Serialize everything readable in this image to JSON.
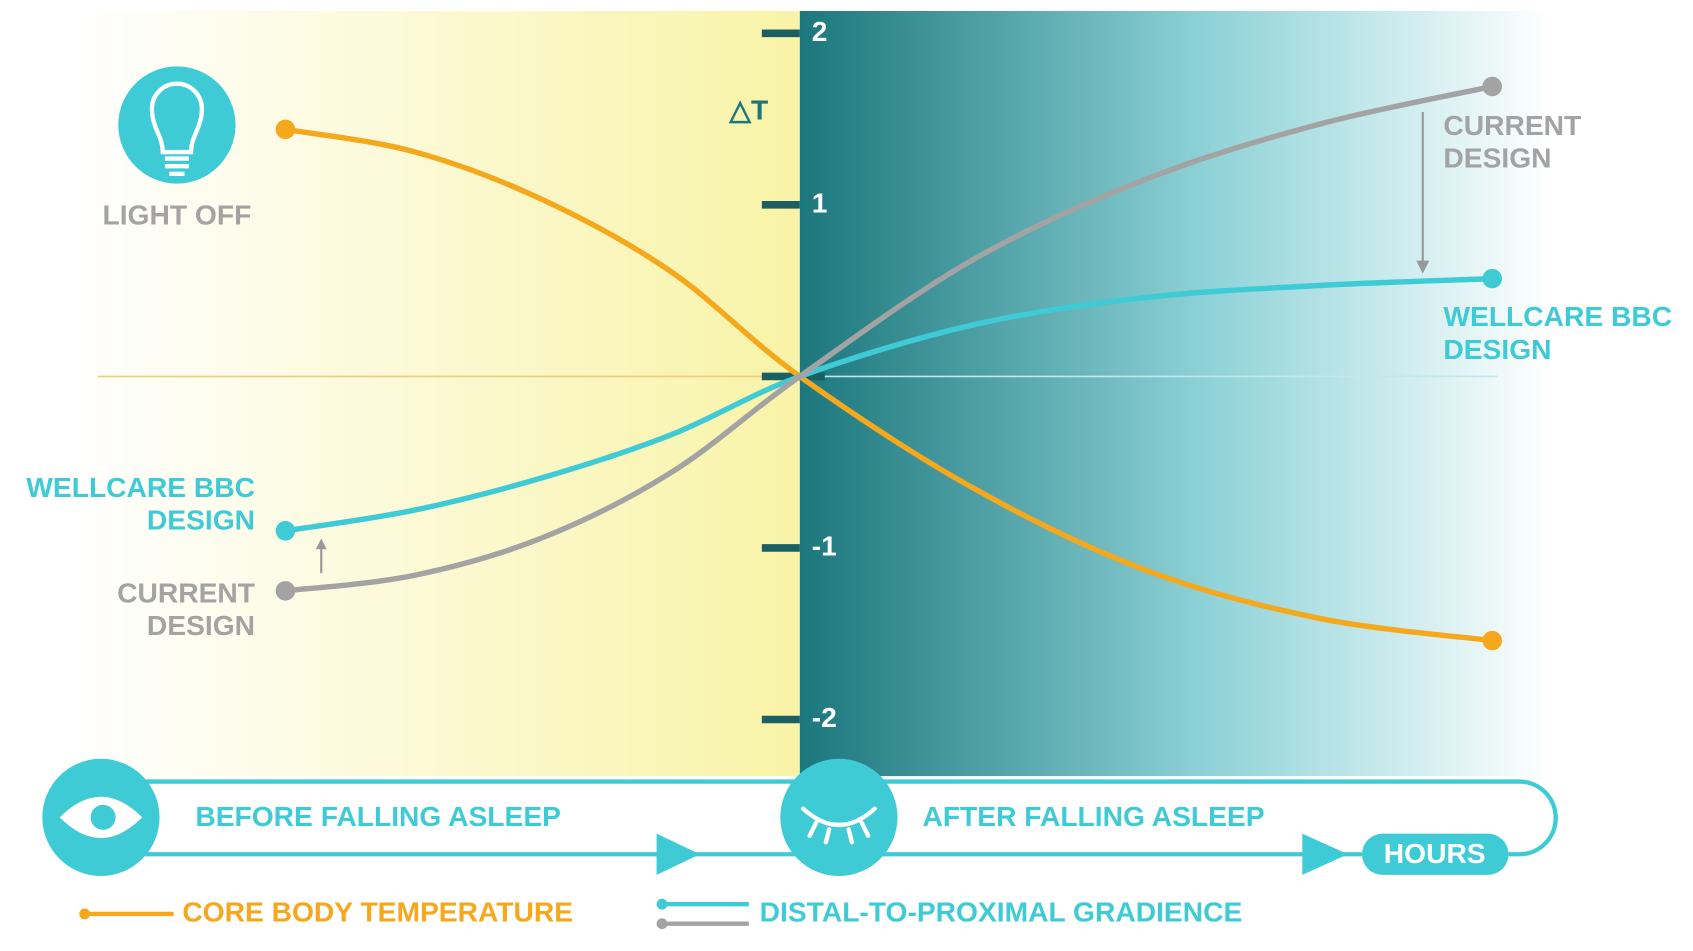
{
  "chart_data": {
    "type": "line",
    "y_label": "△T",
    "categories": [
      null,
      null,
      null,
      null,
      null,
      null,
      null,
      null,
      null
    ],
    "ylim": [
      -2.33,
      2.13
    ],
    "yticks": [
      -2,
      -1,
      1,
      2
    ],
    "series": [
      {
        "name": "CORE BODY TEMPERATURE",
        "color": "#f5a81c",
        "values": [
          1.44,
          1.31,
          1.03,
          0.61,
          0,
          -0.65,
          -1.13,
          -1.41,
          -1.54
        ]
      },
      {
        "label_lines": [
          "WELLCARE BBC",
          "DESIGN"
        ],
        "color": "#3ecbd6",
        "values": [
          -0.9,
          -0.78,
          -0.59,
          -0.34,
          0,
          0.3,
          0.46,
          0.53,
          0.57
        ]
      },
      {
        "label_lines": [
          "CURRENT",
          "DESIGN"
        ],
        "color": "#a3a3a3",
        "values": [
          -1.25,
          -1.16,
          -0.94,
          -0.56,
          0,
          0.68,
          1.15,
          1.47,
          1.69
        ]
      }
    ],
    "light_label": "LIGHT OFF",
    "phase_before": "BEFORE FALLING ASLEEP",
    "phase_after": "AFTER FALLING ASLEEP",
    "x_label": "HOURS",
    "legend_gradience": "DISTAL-TO-PROXIMAL GRADIENCE"
  }
}
